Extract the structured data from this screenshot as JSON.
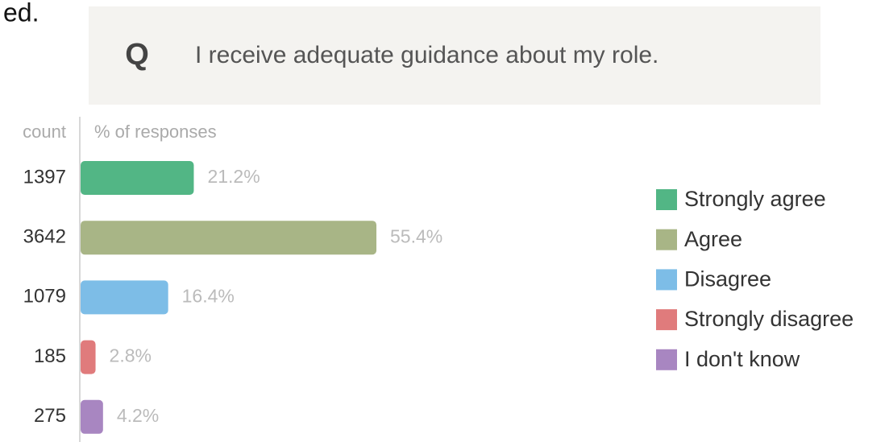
{
  "header_fragment": "ed.",
  "question": {
    "marker": "Q",
    "text": "I receive adequate guidance about my role."
  },
  "chart_data": {
    "type": "bar",
    "orientation": "horizontal",
    "count_label": "count",
    "x_label": "% of responses",
    "categories": [
      "Strongly agree",
      "Agree",
      "Disagree",
      "Strongly disagree",
      "I don't know"
    ],
    "values": [
      21.2,
      55.4,
      16.4,
      2.8,
      4.2
    ],
    "value_labels": [
      "21.2%",
      "55.4%",
      "16.4%",
      "2.8%",
      "4.2%"
    ],
    "counts": [
      1397,
      3642,
      1079,
      185,
      275
    ],
    "colors": [
      "#52b685",
      "#a8b586",
      "#7dbde7",
      "#e07b7c",
      "#a886c1"
    ],
    "legend": "right"
  }
}
